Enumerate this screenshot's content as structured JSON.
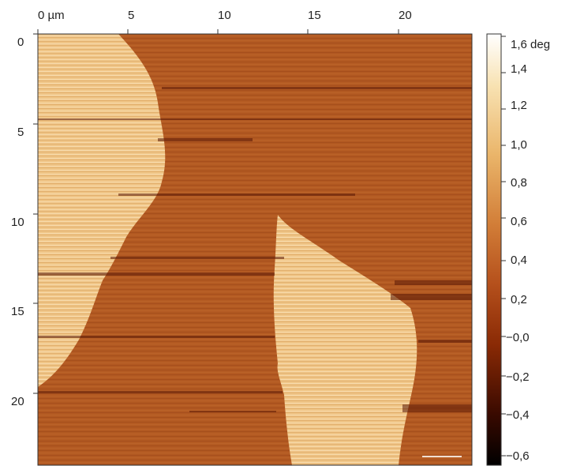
{
  "image": {
    "kind": "AFM phase image",
    "x_axis": {
      "ticks": [
        "0 µm",
        "5",
        "10",
        "15",
        "20"
      ],
      "values": [
        0,
        5,
        10,
        15,
        20
      ],
      "range": [
        0,
        24
      ]
    },
    "y_axis": {
      "ticks": [
        "0",
        "5",
        "10",
        "15",
        "20"
      ],
      "values": [
        0,
        5,
        10,
        15,
        20
      ],
      "range": [
        0,
        24
      ]
    },
    "colorbar": {
      "unit": "deg",
      "ticks": [
        "1,6 deg",
        "1,4",
        "1,2",
        "1,0",
        "0,8",
        "0,6",
        "0,4",
        "0,2",
        "−0,0",
        "−0,2",
        "−0,4",
        "−0,6"
      ],
      "values": [
        1.6,
        1.4,
        1.2,
        1.0,
        0.8,
        0.6,
        0.4,
        0.2,
        0.0,
        -0.2,
        -0.4,
        -0.6
      ],
      "range": [
        -0.6,
        1.6
      ],
      "colors": [
        "#000000",
        "#3a0a00",
        "#8a2a05",
        "#b5501c",
        "#d27e38",
        "#eab56a",
        "#f8e2b2",
        "#ffffff"
      ]
    },
    "palette": {
      "background_domain": "#b35a22",
      "bright_domain": "#f0c688",
      "dark_streak": "#5a1806"
    }
  }
}
